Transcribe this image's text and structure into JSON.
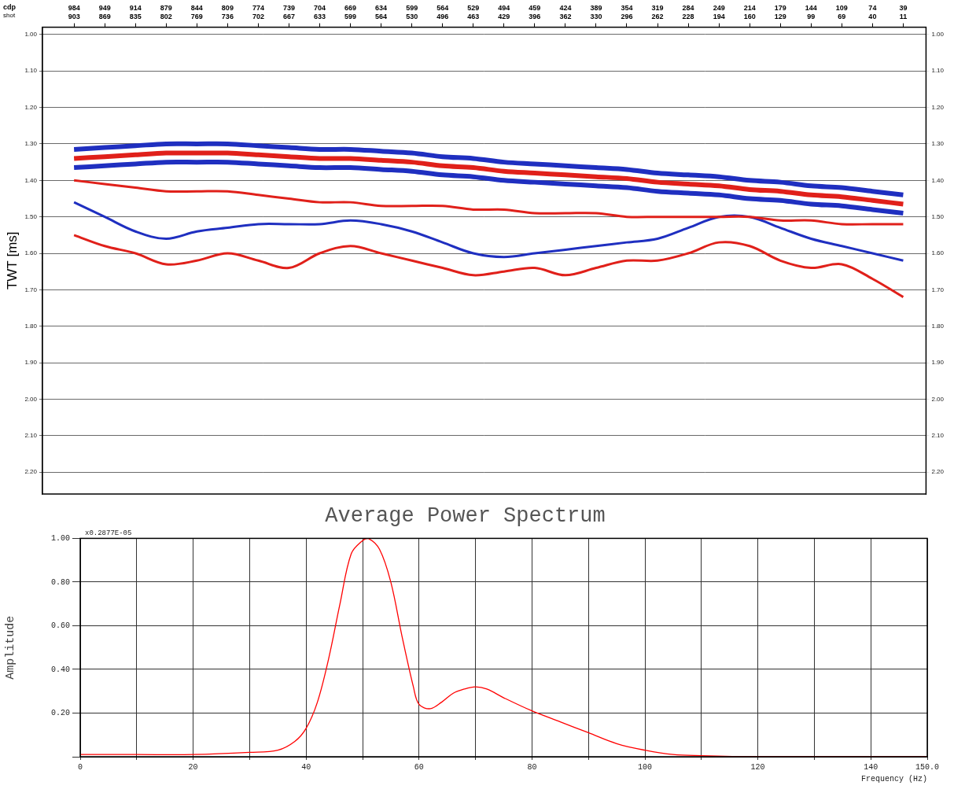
{
  "chart_data": [
    {
      "type": "line",
      "xlabel": "cdp",
      "x2label": "shot",
      "ylabel": "TWT [ms]",
      "x": [
        984,
        949,
        914,
        879,
        844,
        809,
        774,
        739,
        704,
        669,
        634,
        599,
        564,
        529,
        494,
        459,
        424,
        389,
        354,
        319,
        284,
        249,
        214,
        179,
        144,
        109,
        74,
        39
      ],
      "xlim": [
        1020,
        13
      ],
      "xticks": [
        984,
        949,
        914,
        879,
        844,
        809,
        774,
        739,
        704,
        669,
        634,
        599,
        564,
        529,
        494,
        459,
        424,
        389,
        354,
        319,
        284,
        249,
        214,
        179,
        144,
        109,
        74,
        39
      ],
      "shots": [
        903,
        869,
        835,
        802,
        769,
        736,
        702,
        667,
        633,
        599,
        564,
        530,
        496,
        463,
        429,
        396,
        362,
        330,
        296,
        262,
        228,
        194,
        160,
        129,
        99,
        69,
        40,
        11
      ],
      "ylim": [
        2.26,
        0.98
      ],
      "yticks": [
        {
          "value": 1.0,
          "label": "1.00"
        },
        {
          "value": 1.1,
          "label": "1.10"
        },
        {
          "value": 1.2,
          "label": "1.20"
        },
        {
          "value": 1.3,
          "label": "1.30"
        },
        {
          "value": 1.4,
          "label": "1.40"
        },
        {
          "value": 1.5,
          "label": "1.50"
        },
        {
          "value": 1.6,
          "label": "1.60"
        },
        {
          "value": 1.7,
          "label": "1.70"
        },
        {
          "value": 1.8,
          "label": "1.80"
        },
        {
          "value": 1.9,
          "label": "1.90"
        },
        {
          "value": 2.0,
          "label": "2.00"
        },
        {
          "value": 2.1,
          "label": "2.10"
        },
        {
          "value": 2.2,
          "label": "2.20"
        }
      ],
      "grid": true,
      "series": [
        {
          "color": "#1f2fc0",
          "values": [
            1.315,
            1.31,
            1.305,
            1.3,
            1.3,
            1.3,
            1.305,
            1.31,
            1.315,
            1.315,
            1.32,
            1.325,
            1.335,
            1.34,
            1.35,
            1.355,
            1.36,
            1.365,
            1.37,
            1.38,
            1.385,
            1.39,
            1.4,
            1.405,
            1.415,
            1.42,
            1.43,
            1.44
          ]
        },
        {
          "color": "#e0201a",
          "values": [
            1.34,
            1.335,
            1.33,
            1.325,
            1.325,
            1.325,
            1.33,
            1.335,
            1.34,
            1.34,
            1.345,
            1.35,
            1.36,
            1.365,
            1.375,
            1.38,
            1.385,
            1.39,
            1.395,
            1.405,
            1.41,
            1.415,
            1.425,
            1.43,
            1.44,
            1.445,
            1.455,
            1.465
          ]
        },
        {
          "color": "#1f2fc0",
          "values": [
            1.365,
            1.36,
            1.355,
            1.35,
            1.35,
            1.35,
            1.355,
            1.36,
            1.365,
            1.365,
            1.37,
            1.375,
            1.385,
            1.39,
            1.4,
            1.405,
            1.41,
            1.415,
            1.42,
            1.43,
            1.435,
            1.44,
            1.45,
            1.455,
            1.465,
            1.47,
            1.48,
            1.49
          ]
        },
        {
          "color": "#e0201a",
          "values": [
            1.4,
            1.41,
            1.42,
            1.43,
            1.43,
            1.43,
            1.44,
            1.45,
            1.46,
            1.46,
            1.47,
            1.47,
            1.47,
            1.48,
            1.48,
            1.49,
            1.49,
            1.49,
            1.5,
            1.5,
            1.5,
            1.5,
            1.5,
            1.51,
            1.51,
            1.52,
            1.52,
            1.52
          ]
        },
        {
          "color": "#1f2fc0",
          "values": [
            1.46,
            1.5,
            1.54,
            1.56,
            1.54,
            1.53,
            1.52,
            1.52,
            1.52,
            1.51,
            1.52,
            1.54,
            1.57,
            1.6,
            1.61,
            1.6,
            1.59,
            1.58,
            1.57,
            1.56,
            1.53,
            1.5,
            1.5,
            1.53,
            1.56,
            1.58,
            1.6,
            1.62
          ]
        },
        {
          "color": "#e0201a",
          "values": [
            1.55,
            1.58,
            1.6,
            1.63,
            1.62,
            1.6,
            1.62,
            1.64,
            1.6,
            1.58,
            1.6,
            1.62,
            1.64,
            1.66,
            1.65,
            1.64,
            1.66,
            1.64,
            1.62,
            1.62,
            1.6,
            1.57,
            1.58,
            1.62,
            1.64,
            1.63,
            1.67,
            1.72
          ]
        }
      ]
    },
    {
      "type": "line",
      "title": "Average Power Spectrum",
      "annotation": "x0.2877E-05",
      "xlabel": "Frequency (Hz)",
      "ylabel": "Amplitude",
      "x": [
        0,
        10,
        20,
        30,
        35,
        38,
        40,
        42,
        44,
        46,
        48,
        50,
        51,
        53,
        55,
        57,
        59,
        60,
        62,
        64,
        66,
        68,
        70,
        72,
        75,
        80,
        85,
        90,
        95,
        100,
        105,
        110,
        120,
        130,
        140,
        150
      ],
      "xlim": [
        0,
        150
      ],
      "xticks": [
        0,
        {
          "value": 10,
          "label": null
        },
        20,
        {
          "value": 30,
          "label": null
        },
        40,
        {
          "value": 50,
          "label": null
        },
        60,
        {
          "value": 70,
          "label": null
        },
        80,
        {
          "value": 90,
          "label": null
        },
        100,
        {
          "value": 110,
          "label": null
        },
        120,
        {
          "value": 130,
          "label": null
        },
        140,
        {
          "value": 150,
          "label": "150.0"
        }
      ],
      "ylim": [
        0,
        1.0
      ],
      "yticks": [
        {
          "value": 0,
          "label": null
        },
        {
          "value": 0.2,
          "label": "0.20"
        },
        {
          "value": 0.4,
          "label": "0.40"
        },
        {
          "value": 0.6,
          "label": "0.60"
        },
        {
          "value": 0.8,
          "label": "0.80"
        },
        {
          "value": 1.0,
          "label": "1.00"
        }
      ],
      "grid": true,
      "series": [
        {
          "color": "#ff0000",
          "values": [
            0.01,
            0.01,
            0.01,
            0.02,
            0.03,
            0.07,
            0.13,
            0.25,
            0.45,
            0.7,
            0.93,
            0.99,
            1.0,
            0.95,
            0.8,
            0.55,
            0.32,
            0.24,
            0.22,
            0.25,
            0.29,
            0.31,
            0.32,
            0.31,
            0.27,
            0.21,
            0.16,
            0.11,
            0.06,
            0.03,
            0.01,
            0.005,
            0.0,
            0.0,
            0.0,
            0.0
          ]
        }
      ]
    }
  ]
}
